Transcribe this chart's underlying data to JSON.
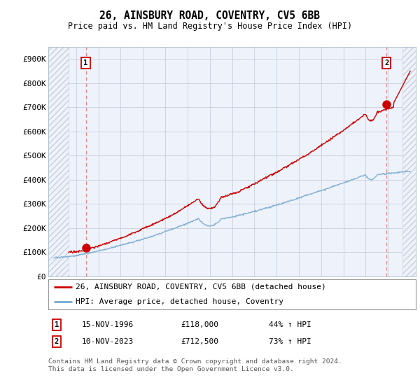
{
  "title": "26, AINSBURY ROAD, COVENTRY, CV5 6BB",
  "subtitle": "Price paid vs. HM Land Registry's House Price Index (HPI)",
  "red_label": "26, AINSBURY ROAD, COVENTRY, CV5 6BB (detached house)",
  "blue_label": "HPI: Average price, detached house, Coventry",
  "sale1_date": "15-NOV-1996",
  "sale1_price": 118000,
  "sale1_hpi": "44% ↑ HPI",
  "sale2_date": "10-NOV-2023",
  "sale2_price": 712500,
  "sale2_hpi": "73% ↑ HPI",
  "footer": "Contains HM Land Registry data © Crown copyright and database right 2024.\nThis data is licensed under the Open Government Licence v3.0.",
  "ylim": [
    0,
    950000
  ],
  "yticks": [
    0,
    100000,
    200000,
    300000,
    400000,
    500000,
    600000,
    700000,
    800000,
    900000
  ],
  "ytick_labels": [
    "£0",
    "£100K",
    "£200K",
    "£300K",
    "£400K",
    "£500K",
    "£600K",
    "£700K",
    "£800K",
    "£900K"
  ],
  "xlim_start": 1993.5,
  "xlim_end": 2026.5,
  "hatch_end": 1995.3,
  "hatch_start2": 2025.3,
  "sale1_x": 1996.87,
  "sale2_x": 2023.87,
  "red_color": "#cc0000",
  "blue_color": "#7aaad0",
  "bg_color": "#ffffff",
  "plot_bg": "#eef2fa",
  "grid_color": "#c8d0dc",
  "hatch_color": "#c8d0dc"
}
